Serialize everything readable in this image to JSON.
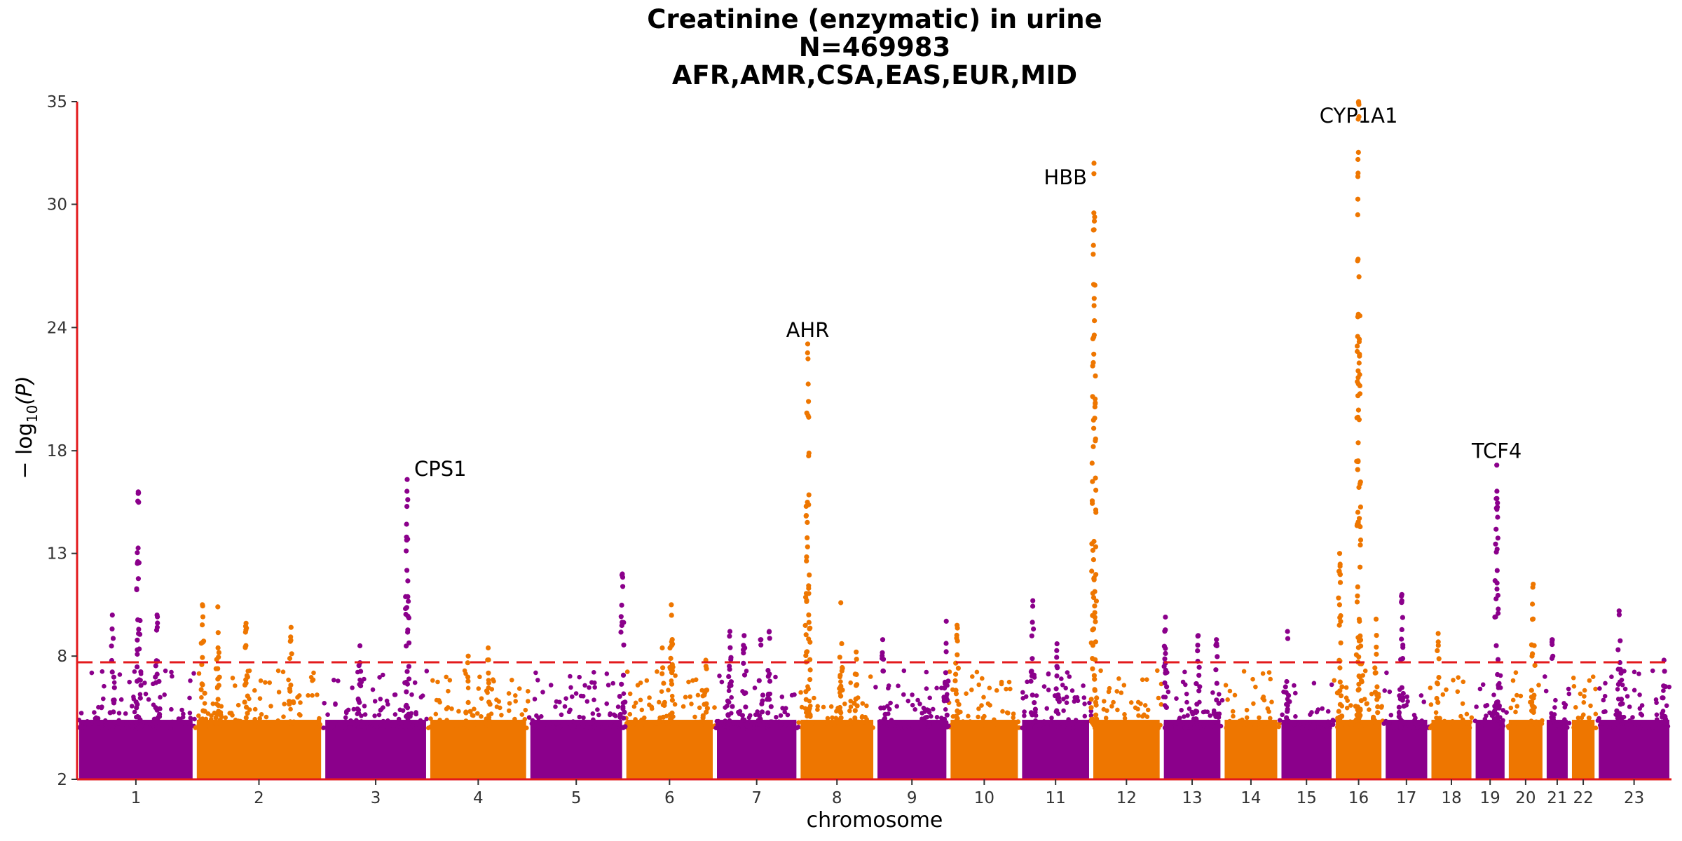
{
  "chart_data": {
    "type": "scatter",
    "title_lines": [
      "Creatinine (enzymatic) in urine",
      "N=469983",
      "AFR,AMR,CSA,EAS,EUR,MID"
    ],
    "xlabel": "chromosome",
    "ylabel_main": "− log",
    "ylabel_sub": "10",
    "ylabel_paren": "(P)",
    "ylim": [
      2,
      35
    ],
    "y_ticks": [
      "2",
      "8",
      "13",
      "18",
      "24",
      "30",
      "35"
    ],
    "significance_line": 7.7,
    "colors": {
      "odd": "#8B008B",
      "even": "#EE7600",
      "threshold": "#E31A1C",
      "axis": "#E31A1C"
    },
    "chromosomes": [
      {
        "label": "1",
        "start": 0.0,
        "end": 7.45
      },
      {
        "label": "2",
        "start": 7.45,
        "end": 15.59
      },
      {
        "label": "3",
        "start": 15.59,
        "end": 22.24
      },
      {
        "label": "4",
        "start": 22.24,
        "end": 28.58
      },
      {
        "label": "5",
        "start": 28.58,
        "end": 34.66
      },
      {
        "label": "6",
        "start": 34.66,
        "end": 40.4
      },
      {
        "label": "7",
        "start": 40.4,
        "end": 45.7
      },
      {
        "label": "8",
        "start": 45.7,
        "end": 50.57
      },
      {
        "label": "9",
        "start": 50.57,
        "end": 55.2
      },
      {
        "label": "10",
        "start": 55.2,
        "end": 59.73
      },
      {
        "label": "11",
        "start": 59.73,
        "end": 64.24
      },
      {
        "label": "12",
        "start": 64.24,
        "end": 68.71
      },
      {
        "label": "13",
        "start": 68.71,
        "end": 72.56
      },
      {
        "label": "14",
        "start": 72.56,
        "end": 76.16
      },
      {
        "label": "15",
        "start": 76.16,
        "end": 79.6
      },
      {
        "label": "16",
        "start": 79.6,
        "end": 82.76
      },
      {
        "label": "17",
        "start": 82.76,
        "end": 85.66
      },
      {
        "label": "18",
        "start": 85.66,
        "end": 88.46
      },
      {
        "label": "19",
        "start": 88.46,
        "end": 90.56
      },
      {
        "label": "20",
        "start": 90.56,
        "end": 92.96
      },
      {
        "label": "21",
        "start": 92.96,
        "end": 94.56
      },
      {
        "label": "22",
        "start": 94.56,
        "end": 96.26
      },
      {
        "label": "23",
        "start": 96.26,
        "end": 101.0
      }
    ],
    "peaks": [
      {
        "chr": "1",
        "pos": 0.52,
        "top": 16.0
      },
      {
        "chr": "1",
        "pos": 0.68,
        "top": 10.0
      },
      {
        "chr": "1",
        "pos": 0.3,
        "top": 10.0
      },
      {
        "chr": "2",
        "pos": 0.06,
        "top": 10.5
      },
      {
        "chr": "2",
        "pos": 0.18,
        "top": 10.4
      },
      {
        "chr": "2",
        "pos": 0.4,
        "top": 9.6
      },
      {
        "chr": "2",
        "pos": 0.75,
        "top": 9.4
      },
      {
        "chr": "3",
        "pos": 0.8,
        "top": 16.6
      },
      {
        "chr": "3",
        "pos": 0.35,
        "top": 8.5
      },
      {
        "chr": "4",
        "pos": 0.4,
        "top": 8.0
      },
      {
        "chr": "4",
        "pos": 0.6,
        "top": 8.4
      },
      {
        "chr": "5",
        "pos": 0.98,
        "top": 12.0
      },
      {
        "chr": "6",
        "pos": 0.42,
        "top": 8.4
      },
      {
        "chr": "6",
        "pos": 0.52,
        "top": 10.5
      },
      {
        "chr": "6",
        "pos": 0.9,
        "top": 7.8
      },
      {
        "chr": "7",
        "pos": 0.18,
        "top": 9.2
      },
      {
        "chr": "7",
        "pos": 0.35,
        "top": 9.0
      },
      {
        "chr": "7",
        "pos": 0.55,
        "top": 8.8
      },
      {
        "chr": "7",
        "pos": 0.65,
        "top": 9.2
      },
      {
        "chr": "8",
        "pos": 0.12,
        "top": 23.2
      },
      {
        "chr": "8",
        "pos": 0.55,
        "top": 10.6
      },
      {
        "chr": "8",
        "pos": 0.75,
        "top": 8.2
      },
      {
        "chr": "9",
        "pos": 0.1,
        "top": 8.8
      },
      {
        "chr": "9",
        "pos": 0.97,
        "top": 9.7
      },
      {
        "chr": "10",
        "pos": 0.12,
        "top": 9.5
      },
      {
        "chr": "11",
        "pos": 0.18,
        "top": 10.7
      },
      {
        "chr": "11",
        "pos": 0.52,
        "top": 8.6
      },
      {
        "chr": "12",
        "pos": 0.04,
        "top": 32.0
      },
      {
        "chr": "13",
        "pos": 0.06,
        "top": 9.9
      },
      {
        "chr": "13",
        "pos": 0.6,
        "top": 9.0
      },
      {
        "chr": "13",
        "pos": 0.9,
        "top": 8.8
      },
      {
        "chr": "15",
        "pos": 0.15,
        "top": 9.2
      },
      {
        "chr": "16",
        "pos": 0.12,
        "top": 13.0
      },
      {
        "chr": "16",
        "pos": 0.5,
        "top": 35.0
      },
      {
        "chr": "16",
        "pos": 0.85,
        "top": 9.8
      },
      {
        "chr": "17",
        "pos": 0.4,
        "top": 11.0
      },
      {
        "chr": "18",
        "pos": 0.2,
        "top": 9.1
      },
      {
        "chr": "19",
        "pos": 0.7,
        "top": 17.3
      },
      {
        "chr": "20",
        "pos": 0.7,
        "top": 11.5
      },
      {
        "chr": "21",
        "pos": 0.3,
        "top": 8.8
      },
      {
        "chr": "23",
        "pos": 0.3,
        "top": 10.2
      },
      {
        "chr": "23",
        "pos": 0.9,
        "top": 7.8
      }
    ],
    "annotations": [
      {
        "label": "CPS1",
        "chr": "3",
        "pos": 0.8,
        "y": 16.6
      },
      {
        "label": "AHR",
        "chr": "8",
        "pos": 0.12,
        "y": 23.2
      },
      {
        "label": "HBB",
        "chr": "12",
        "pos": 0.04,
        "y": 32.0
      },
      {
        "label": "CYP1A1",
        "chr": "16",
        "pos": 0.5,
        "y": 35.0
      },
      {
        "label": "TCF4",
        "chr": "19",
        "pos": 0.7,
        "y": 17.3
      }
    ]
  }
}
